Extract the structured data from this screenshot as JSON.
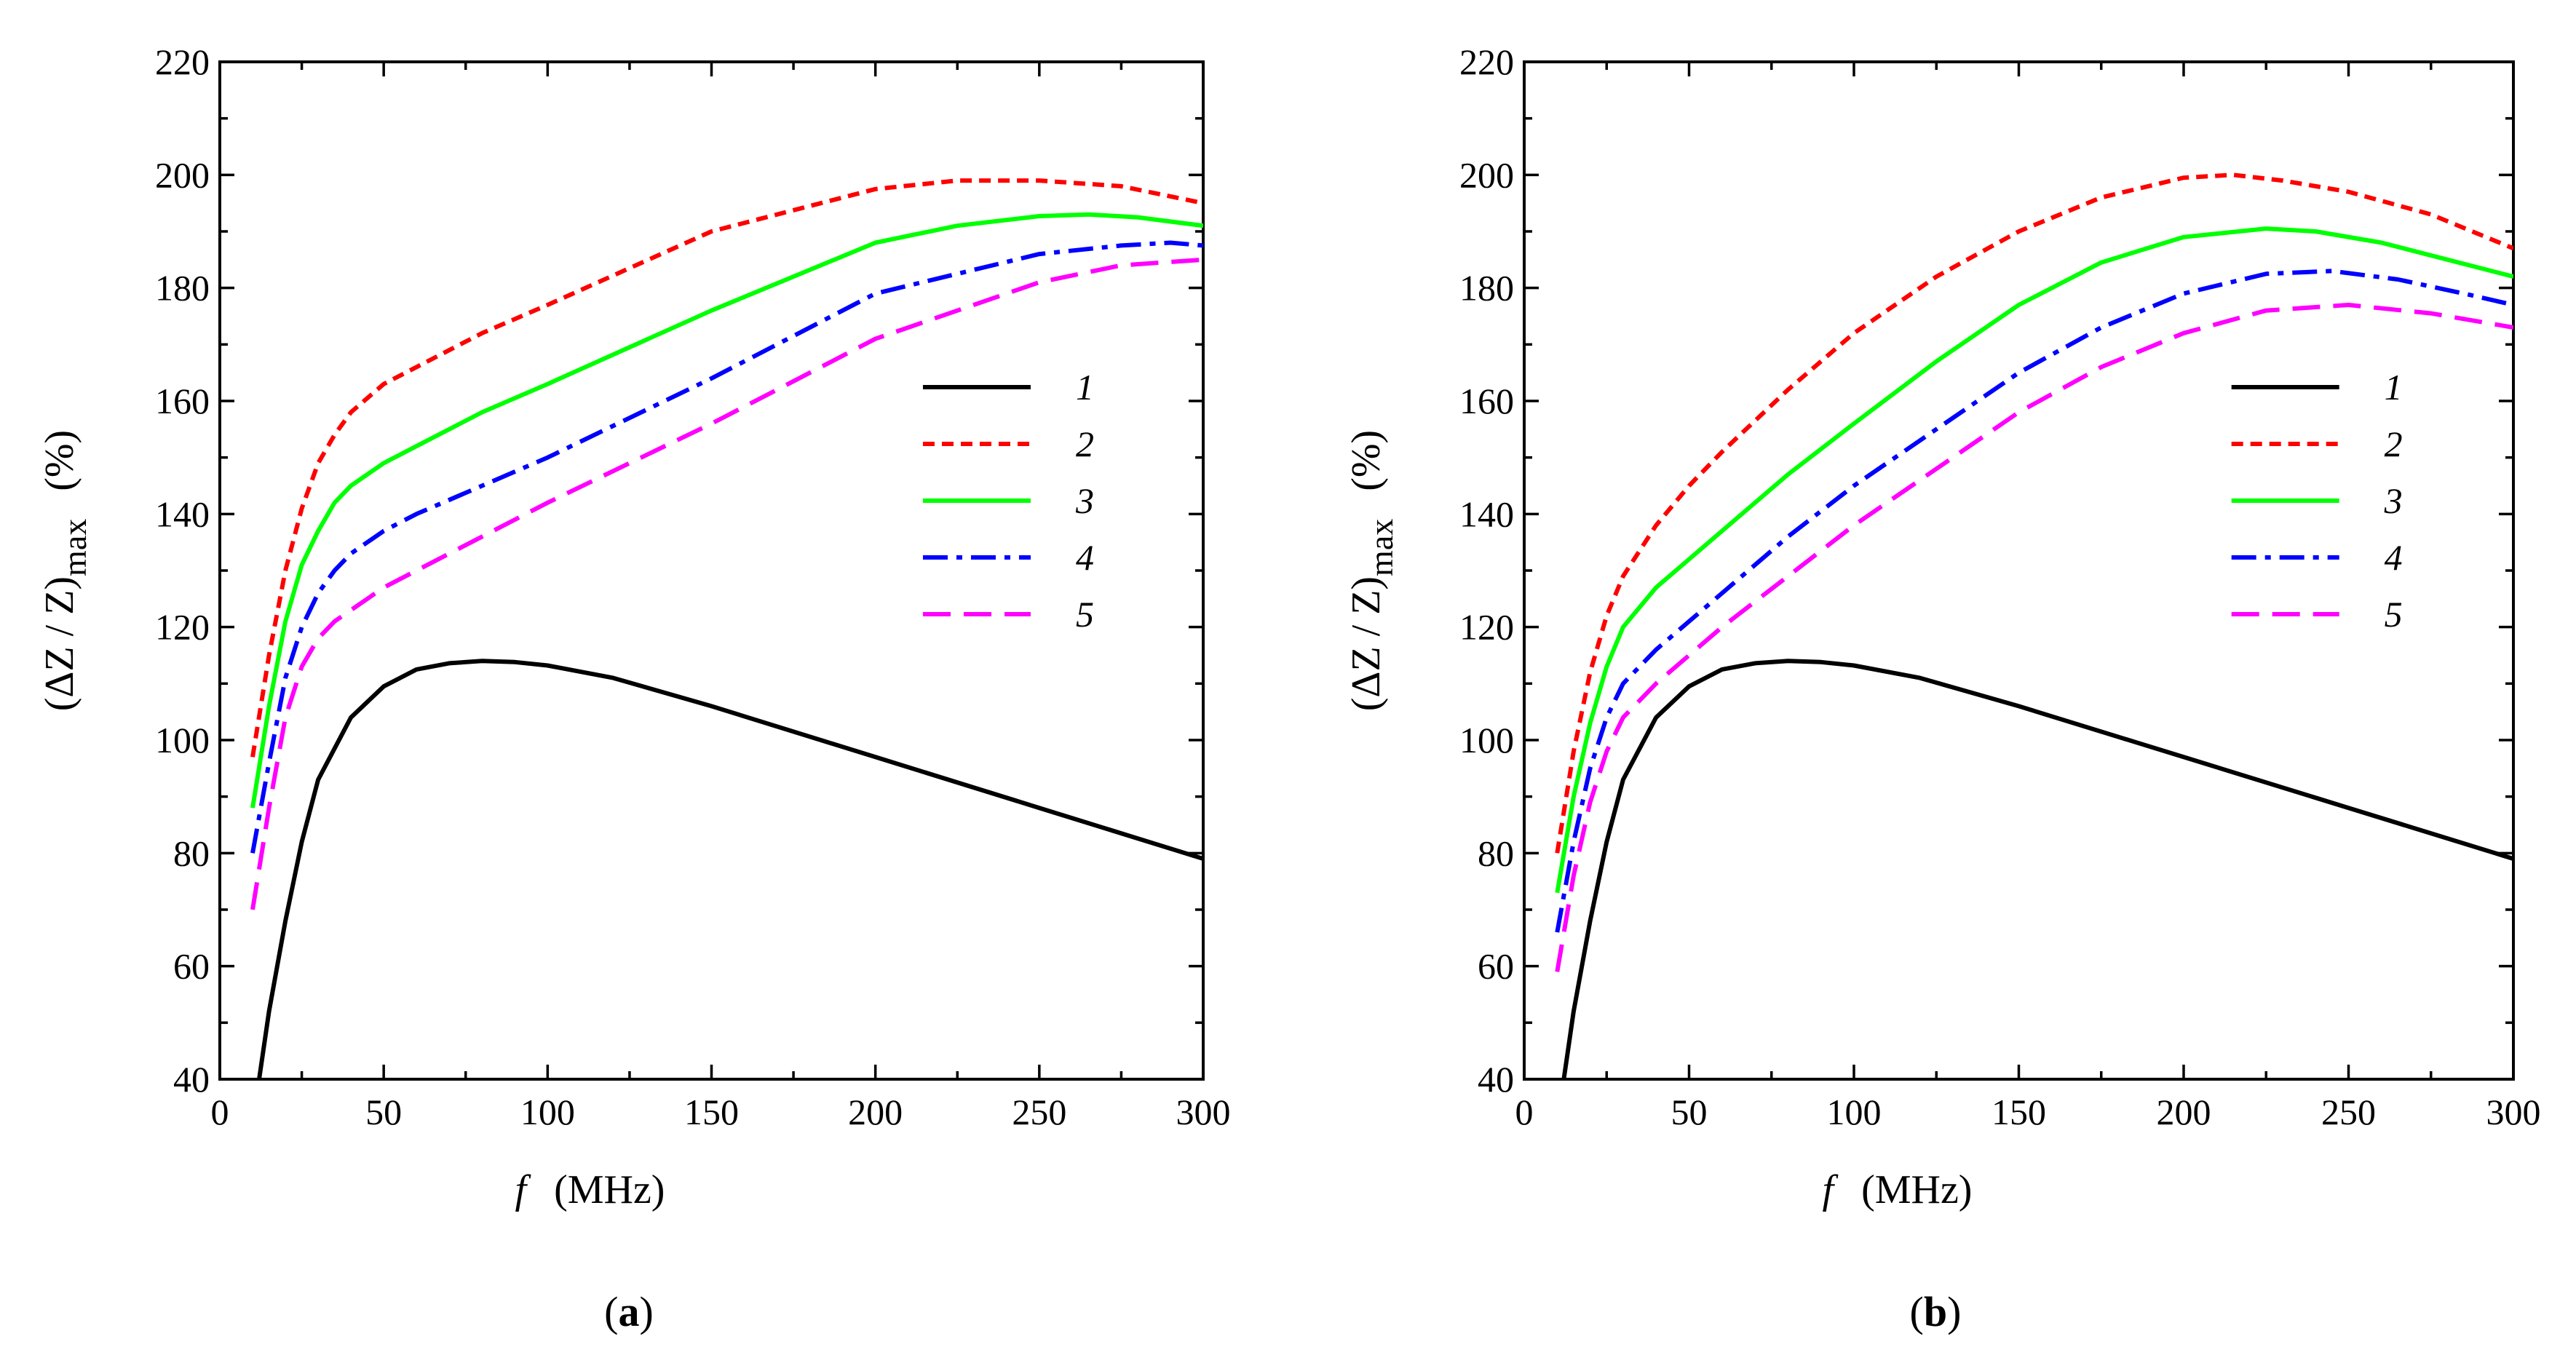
{
  "chart_data": [
    {
      "type": "line",
      "panel": "a",
      "panel_label": "a",
      "xlabel_var": "f",
      "xlabel_unit": "(MHz)",
      "ylabel_main": "(ΔZ / Z)",
      "ylabel_sub": "max",
      "ylabel_unit": "(%)",
      "xlim": [
        0,
        300
      ],
      "ylim": [
        40,
        220
      ],
      "xticks": [
        0,
        50,
        100,
        150,
        200,
        250,
        300
      ],
      "yticks": [
        40,
        60,
        80,
        100,
        120,
        140,
        160,
        180,
        200,
        220
      ],
      "legend_position": "center-right",
      "series": [
        {
          "name": "1",
          "color": "#000000",
          "dash": "solid",
          "x": [
            12,
            15,
            20,
            25,
            30,
            40,
            50,
            60,
            70,
            80,
            90,
            100,
            120,
            150,
            200,
            250,
            300
          ],
          "y": [
            40,
            52,
            68,
            82,
            93,
            104,
            109.5,
            112.5,
            113.6,
            114,
            113.8,
            113.2,
            111,
            106,
            97,
            88,
            79
          ]
        },
        {
          "name": "2",
          "color": "#ff0000",
          "dash": "short-dash",
          "x": [
            10,
            15,
            20,
            25,
            30,
            35,
            40,
            50,
            60,
            80,
            100,
            150,
            200,
            225,
            250,
            275,
            300
          ],
          "y": [
            97,
            115,
            130,
            141,
            149,
            154,
            158,
            163,
            166,
            172,
            177,
            190,
            197.5,
            199,
            199,
            198,
            195
          ]
        },
        {
          "name": "3",
          "color": "#00ff00",
          "dash": "solid",
          "x": [
            10,
            15,
            20,
            25,
            30,
            35,
            40,
            50,
            60,
            80,
            100,
            150,
            200,
            225,
            250,
            265,
            280,
            300
          ],
          "y": [
            88,
            106,
            121,
            131,
            137,
            142,
            145,
            149,
            152,
            158,
            163,
            176,
            188,
            191,
            192.7,
            193,
            192.5,
            191
          ]
        },
        {
          "name": "4",
          "color": "#0000ff",
          "dash": "dash-dot",
          "x": [
            10,
            15,
            20,
            25,
            30,
            35,
            40,
            50,
            60,
            80,
            100,
            150,
            200,
            250,
            275,
            290,
            300
          ],
          "y": [
            80,
            96,
            111,
            120,
            126,
            130,
            133,
            137,
            140,
            145,
            150,
            164,
            179,
            186,
            187.5,
            188,
            187.5
          ]
        },
        {
          "name": "5",
          "color": "#ff00ff",
          "dash": "long-dash",
          "x": [
            10,
            15,
            20,
            25,
            30,
            35,
            40,
            50,
            60,
            80,
            100,
            150,
            200,
            250,
            275,
            300
          ],
          "y": [
            70,
            88,
            104,
            113,
            118,
            121,
            123,
            127,
            130,
            136,
            142,
            156,
            171,
            181,
            184,
            185
          ]
        }
      ]
    },
    {
      "type": "line",
      "panel": "b",
      "panel_label": "b",
      "xlabel_var": "f",
      "xlabel_unit": "(MHz)",
      "ylabel_main": "(ΔZ / Z)",
      "ylabel_sub": "max",
      "ylabel_unit": "(%)",
      "xlim": [
        0,
        300
      ],
      "ylim": [
        40,
        220
      ],
      "xticks": [
        0,
        50,
        100,
        150,
        200,
        250,
        300
      ],
      "yticks": [
        40,
        60,
        80,
        100,
        120,
        140,
        160,
        180,
        200,
        220
      ],
      "legend_position": "center-right",
      "series": [
        {
          "name": "1",
          "color": "#000000",
          "dash": "solid",
          "x": [
            12,
            15,
            20,
            25,
            30,
            40,
            50,
            60,
            70,
            80,
            90,
            100,
            120,
            150,
            200,
            250,
            300
          ],
          "y": [
            40,
            52,
            68,
            82,
            93,
            104,
            109.5,
            112.5,
            113.6,
            114,
            113.8,
            113.2,
            111,
            106,
            97,
            88,
            79
          ]
        },
        {
          "name": "2",
          "color": "#ff0000",
          "dash": "short-dash",
          "x": [
            10,
            15,
            20,
            25,
            30,
            40,
            50,
            60,
            80,
            100,
            125,
            150,
            175,
            200,
            215,
            230,
            250,
            275,
            300
          ],
          "y": [
            80,
            98,
            112,
            122,
            129,
            138,
            145,
            151,
            162,
            172,
            182,
            190,
            196,
            199.5,
            200,
            199,
            197,
            193,
            187
          ]
        },
        {
          "name": "3",
          "color": "#00ff00",
          "dash": "solid",
          "x": [
            10,
            15,
            20,
            25,
            30,
            40,
            50,
            60,
            80,
            100,
            125,
            150,
            175,
            200,
            225,
            240,
            260,
            280,
            300
          ],
          "y": [
            73,
            90,
            103,
            113,
            120,
            127,
            132,
            137,
            147,
            156,
            167,
            177,
            184.5,
            189,
            190.5,
            190,
            188,
            185,
            182
          ]
        },
        {
          "name": "4",
          "color": "#0000ff",
          "dash": "dash-dot",
          "x": [
            10,
            15,
            20,
            25,
            30,
            40,
            50,
            60,
            80,
            100,
            125,
            150,
            175,
            200,
            225,
            245,
            265,
            285,
            300
          ],
          "y": [
            66,
            82,
            95,
            104,
            110,
            116,
            121,
            126,
            136,
            145,
            155,
            165,
            173,
            179,
            182.5,
            183,
            181.5,
            179,
            177
          ]
        },
        {
          "name": "5",
          "color": "#ff00ff",
          "dash": "long-dash",
          "x": [
            10,
            15,
            20,
            25,
            30,
            40,
            50,
            60,
            80,
            100,
            125,
            150,
            175,
            200,
            225,
            250,
            275,
            300
          ],
          "y": [
            59,
            76,
            89,
            98,
            104,
            110,
            115,
            120,
            129,
            138,
            148,
            158,
            166,
            172,
            176,
            177,
            175.5,
            173
          ]
        }
      ]
    }
  ]
}
